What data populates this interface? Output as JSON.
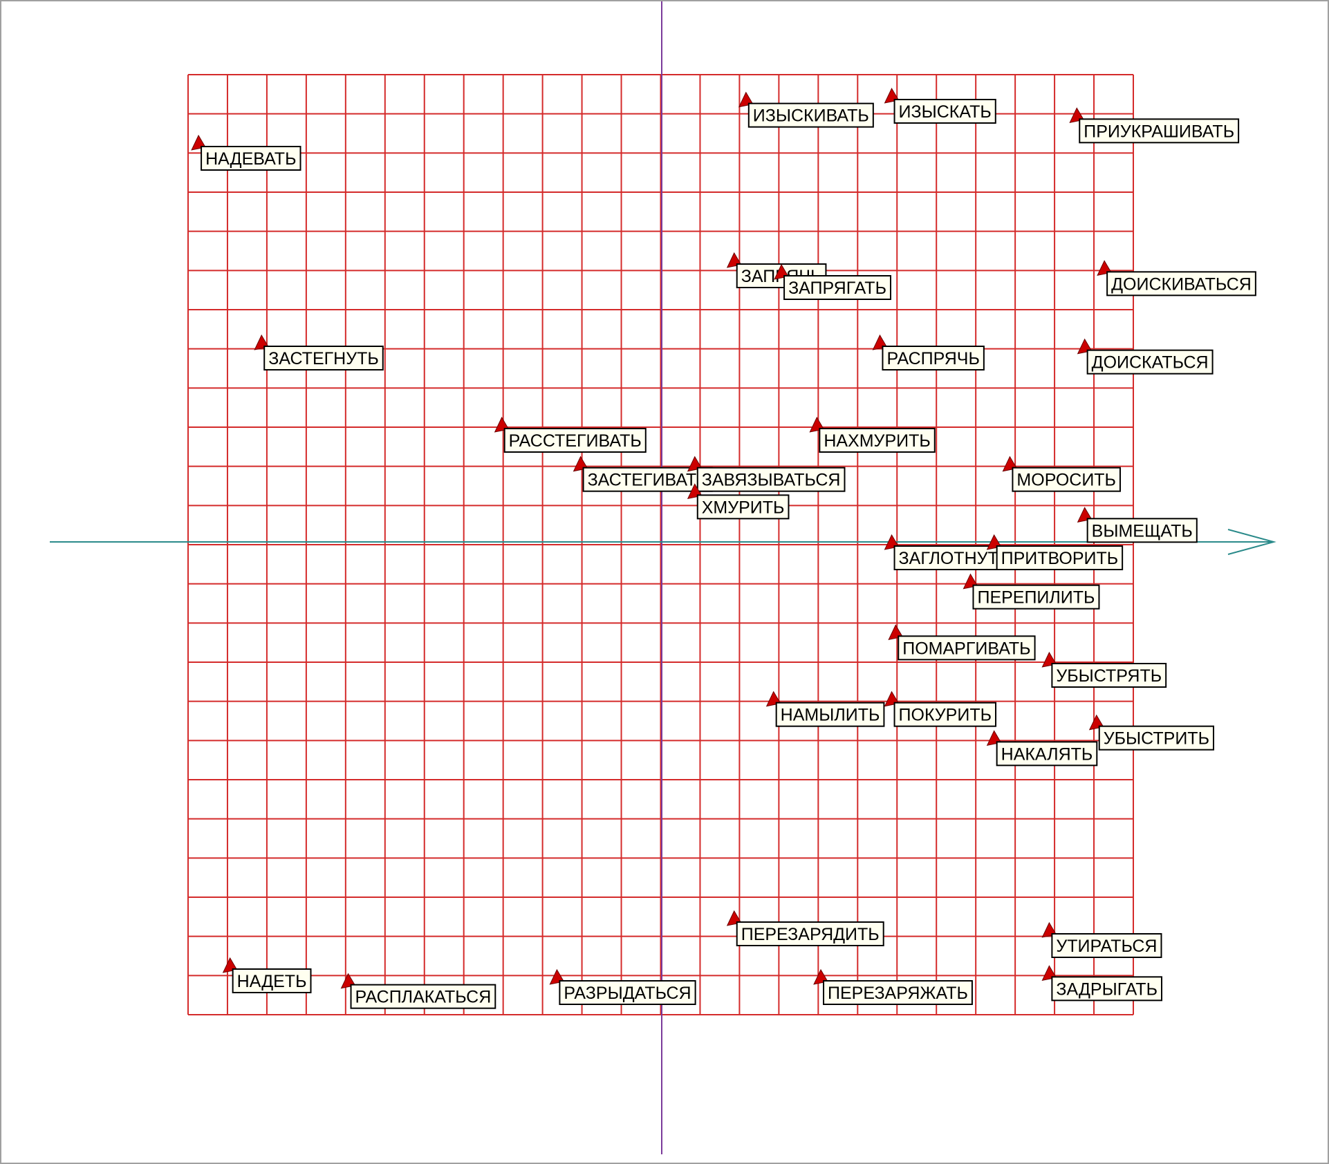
{
  "chart_data": {
    "type": "scatter",
    "title": "",
    "xlabel": "",
    "ylabel": "",
    "grid": true,
    "grid_columns": 24,
    "grid_rows": 24,
    "xlim": [
      -12,
      12
    ],
    "ylim": [
      -12,
      12
    ],
    "colors": {
      "grid": "#d42a2a",
      "x_axis": "#2a8a8a",
      "y_axis": "#7a3a9a",
      "marker": "#cc0000",
      "label_bg": "#fffff0",
      "label_border": "#000000"
    },
    "points": [
      {
        "label": "НАДЕВАТЬ",
        "x": -11.7,
        "y": 10.2
      },
      {
        "label": "ИЗЫСКИВАТЬ",
        "x": 2.2,
        "y": 11.3
      },
      {
        "label": "ИЗЫСКАТЬ",
        "x": 5.9,
        "y": 11.4
      },
      {
        "label": "ПРИУКРАШИВАТЬ",
        "x": 10.6,
        "y": 10.9
      },
      {
        "label": "ЗАПРЯЧЬ",
        "x": 1.9,
        "y": 7.2
      },
      {
        "label": "ЗАПРЯГАТЬ",
        "x": 3.1,
        "y": 6.9
      },
      {
        "label": "ДОИСКИВАТЬСЯ",
        "x": 11.3,
        "y": 7.0
      },
      {
        "label": "ЗАСТЕГНУТЬ",
        "x": -10.1,
        "y": 5.1
      },
      {
        "label": "РАСПРЯЧЬ",
        "x": 5.6,
        "y": 5.1
      },
      {
        "label": "ДОИСКАТЬСЯ",
        "x": 10.8,
        "y": 5.0
      },
      {
        "label": "РАССТЕГИВАТЬ",
        "x": -4.0,
        "y": 3.0
      },
      {
        "label": "НАХМУРИТЬ",
        "x": 4.0,
        "y": 3.0
      },
      {
        "label": "ЗАСТЕГИВАТЬ",
        "x": -2.0,
        "y": 2.0
      },
      {
        "label": "ЗАВЯЗЫВАТЬСЯ",
        "x": 0.9,
        "y": 2.0
      },
      {
        "label": "ХМУРИТЬ",
        "x": 0.9,
        "y": 1.3
      },
      {
        "label": "МОРОСИТЬ",
        "x": 8.9,
        "y": 2.0
      },
      {
        "label": "ВЫМЕЩАТЬ",
        "x": 10.8,
        "y": 0.7
      },
      {
        "label": "ЗАГЛОТНУТЬ",
        "x": 5.9,
        "y": 0.0
      },
      {
        "label": "ПРИТВОРИТЬ",
        "x": 8.5,
        "y": 0.0
      },
      {
        "label": "ПЕРЕПИЛИТЬ",
        "x": 7.9,
        "y": -1.0
      },
      {
        "label": "ПОМАРГИВАТЬ",
        "x": 6.0,
        "y": -2.3
      },
      {
        "label": "УБЫСТРЯТЬ",
        "x": 9.9,
        "y": -3.0
      },
      {
        "label": "НАМЫЛИТЬ",
        "x": 2.9,
        "y": -4.0
      },
      {
        "label": "ПОКУРИТЬ",
        "x": 5.9,
        "y": -4.0
      },
      {
        "label": "УБЫСТРИТЬ",
        "x": 11.1,
        "y": -4.6
      },
      {
        "label": "НАКАЛЯТЬ",
        "x": 8.5,
        "y": -5.0
      },
      {
        "label": "ПЕРЕЗАРЯДИТЬ",
        "x": 1.9,
        "y": -9.6
      },
      {
        "label": "УТИРАТЬСЯ",
        "x": 9.9,
        "y": -9.9
      },
      {
        "label": "НАДЕТЬ",
        "x": -10.9,
        "y": -10.8
      },
      {
        "label": "РАСПЛАКАТЬСЯ",
        "x": -7.9,
        "y": -11.2
      },
      {
        "label": "РАЗРЫДАТЬСЯ",
        "x": -2.6,
        "y": -11.1
      },
      {
        "label": "ПЕРЕЗАРЯЖАТЬ",
        "x": 4.1,
        "y": -11.1
      },
      {
        "label": "ЗАДРЫГАТЬ",
        "x": 9.9,
        "y": -11.0
      }
    ]
  }
}
